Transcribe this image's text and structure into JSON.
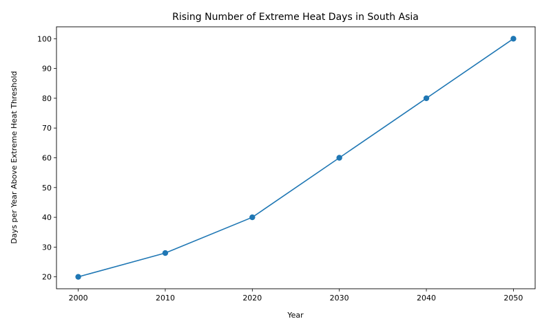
{
  "chart_data": {
    "type": "line",
    "title": "Rising Number of Extreme Heat Days in South Asia",
    "xlabel": "Year",
    "ylabel": "Days per Year Above Extreme Heat Threshold",
    "x": [
      2000,
      2010,
      2020,
      2030,
      2040,
      2050
    ],
    "series": [
      {
        "values": [
          20,
          28,
          40,
          60,
          80,
          100
        ]
      }
    ],
    "xlim": [
      1997.5,
      2052.5
    ],
    "ylim": [
      16,
      104
    ],
    "xticks": [
      2000,
      2010,
      2020,
      2030,
      2040,
      2050
    ],
    "yticks": [
      20,
      30,
      40,
      50,
      60,
      70,
      80,
      90,
      100
    ],
    "grid": false,
    "marker": "circle",
    "line_color": "#1f77b4"
  }
}
